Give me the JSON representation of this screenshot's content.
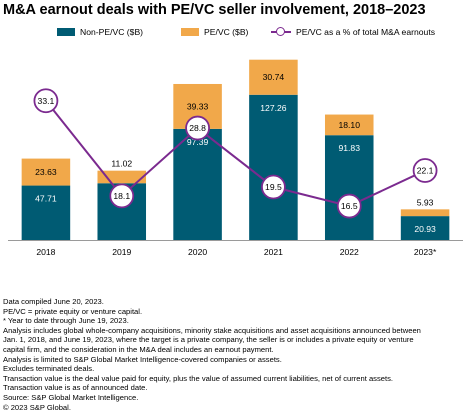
{
  "title": "M&A earnout deals with PE/VC seller involvement, 2018–2023",
  "colors": {
    "non_pe": "#005b73",
    "pe": "#f1a84a",
    "line": "#7b2a8f"
  },
  "chart_data": {
    "type": "bar",
    "stacked": true,
    "categories": [
      "2018",
      "2019",
      "2020",
      "2021",
      "2022",
      "2023*"
    ],
    "series": [
      {
        "name": "Non-PE/VC ($B)",
        "values": [
          47.71,
          49.74,
          97.39,
          127.26,
          91.83,
          20.93
        ]
      },
      {
        "name": "PE/VC ($B)",
        "values": [
          23.63,
          11.02,
          39.33,
          30.74,
          18.1,
          5.93
        ]
      }
    ],
    "value_labels": {
      "non_pe": [
        "47.71",
        "49.74",
        "97.39",
        "127.26",
        "91.83",
        "20.93"
      ],
      "pe": [
        "23.63",
        "11.02",
        "39.33",
        "30.74",
        "18.10",
        "5.93"
      ]
    },
    "line_series": {
      "name": "PE/VC as a % of total M&A earnouts",
      "values": [
        33.1,
        18.1,
        28.8,
        19.5,
        16.5,
        22.1
      ],
      "labels": [
        "33.1",
        "18.1",
        "28.8",
        "19.5",
        "16.5",
        "22.1"
      ],
      "range": [
        5,
        40
      ]
    },
    "ylim": [
      0,
      170
    ],
    "xlabel": "",
    "ylabel": "",
    "legend_position": "top",
    "grid": false
  },
  "notes": [
    "Data compiled June 20, 2023.",
    "PE/VC = private equity or venture capital.",
    "* Year to date through June 19, 2023.",
    "Analysis includes global whole-company acquisitions, minority stake acquisitions and asset acquisitions announced between",
    "Jan. 1, 2018, and June 19, 2023, where the target is a private company, the seller is or includes a private equity or venture",
    "capital firm, and the consideration in the M&A deal includes an earnout payment.",
    "Analysis is limited to S&P Global Market Intelligence-covered companies or assets.",
    "Excludes terminated deals.",
    "Transaction value is the deal value paid for equity, plus the value of assumed current liabilities, net of current assets.",
    "Transaction value is as of announced date.",
    "Source: S&P Global Market Intelligence.",
    "© 2023 S&P Global."
  ]
}
